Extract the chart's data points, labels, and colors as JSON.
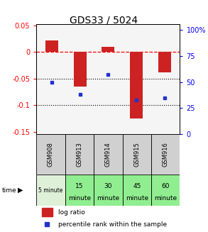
{
  "title": "GDS33 / 5024",
  "samples": [
    "GSM908",
    "GSM913",
    "GSM914",
    "GSM915",
    "GSM916"
  ],
  "time_labels_line1": [
    "5 minute",
    "15",
    "30",
    "45",
    "60"
  ],
  "time_labels_line2": [
    "",
    "minute",
    "minute",
    "minute",
    "minute"
  ],
  "time_colors": [
    "#dff0d8",
    "#90ee90",
    "#90ee90",
    "#90ee90",
    "#90ee90"
  ],
  "log_ratios": [
    0.022,
    -0.065,
    0.01,
    -0.125,
    -0.038
  ],
  "percentile_ranks": [
    50,
    38,
    57,
    33,
    35
  ],
  "bar_color": "#cc2222",
  "dot_color": "#2233cc",
  "ylim_left": [
    -0.155,
    0.052
  ],
  "ylim_right": [
    0,
    105
  ],
  "y_ticks_left": [
    0.05,
    0.0,
    -0.05,
    -0.1,
    -0.15
  ],
  "y_tick_labels_left": [
    "0.05",
    "0",
    "-0.05",
    "-0.1",
    "-0.15"
  ],
  "y_ticks_right": [
    100,
    75,
    50,
    25,
    0
  ],
  "y_tick_labels_right": [
    "100%",
    "75",
    "50",
    "25",
    "0"
  ],
  "hline_y": 0.0,
  "dotted_lines": [
    -0.05,
    -0.1
  ],
  "plot_bg_color": "#f5f5f5",
  "bar_width": 0.45,
  "title_fontsize": 10,
  "tick_fontsize": 7,
  "legend_fontsize": 6.5,
  "sample_bg_color": "#d0d0d0",
  "white_bg": "#ffffff"
}
